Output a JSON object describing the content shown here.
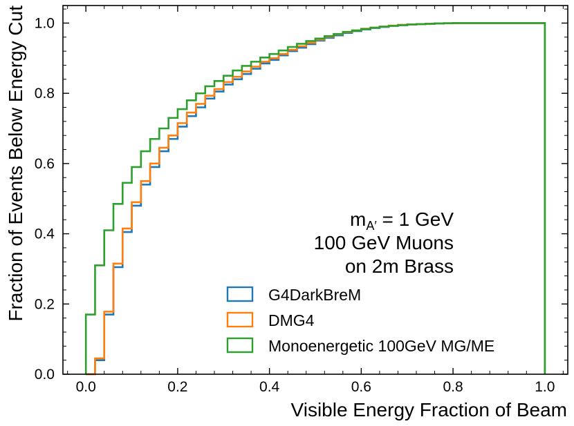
{
  "chart_data": {
    "type": "line",
    "style": "step-histogram",
    "xlabel": "Visible Energy Fraction of Beam",
    "ylabel": "Fraction of Events Below Energy Cut",
    "xlim": [
      -0.05,
      1.05
    ],
    "ylim": [
      0.0,
      1.05
    ],
    "xticks": [
      0.0,
      0.2,
      0.4,
      0.6,
      0.8,
      1.0
    ],
    "xtick_labels": [
      "0.0",
      "0.2",
      "0.4",
      "0.6",
      "0.8",
      "1.0"
    ],
    "yticks": [
      0.0,
      0.2,
      0.4,
      0.6,
      0.8,
      1.0
    ],
    "ytick_labels": [
      "0.0",
      "0.2",
      "0.4",
      "0.6",
      "0.8",
      "1.0"
    ],
    "annotations": {
      "mass_prefix": "m",
      "mass_subscript": "A′",
      "mass_suffix": " = 1 GeV",
      "line2": "100 GeV Muons",
      "line3": "on 2m Brass"
    },
    "legend_location": "lower-right",
    "bin_width": 0.02,
    "x": [
      0.0,
      0.02,
      0.04,
      0.06,
      0.08,
      0.1,
      0.12,
      0.14,
      0.16,
      0.18,
      0.2,
      0.22,
      0.24,
      0.26,
      0.28,
      0.3,
      0.32,
      0.34,
      0.36,
      0.38,
      0.4,
      0.42,
      0.44,
      0.46,
      0.48,
      0.5,
      0.52,
      0.54,
      0.56,
      0.58,
      0.6,
      0.62,
      0.64,
      0.66,
      0.68,
      0.7,
      0.72,
      0.74,
      0.76,
      0.78,
      0.8,
      0.82,
      0.84,
      0.86,
      0.88,
      0.9,
      0.92,
      0.94,
      0.96,
      0.98,
      1.0
    ],
    "series": [
      {
        "name": "G4DarkBreM",
        "color": "#1f77b4",
        "values": [
          0.0,
          0.04,
          0.17,
          0.305,
          0.405,
          0.48,
          0.54,
          0.59,
          0.635,
          0.67,
          0.705,
          0.735,
          0.76,
          0.785,
          0.805,
          0.825,
          0.84,
          0.855,
          0.87,
          0.885,
          0.895,
          0.908,
          0.92,
          0.93,
          0.94,
          0.95,
          0.958,
          0.965,
          0.972,
          0.977,
          0.982,
          0.986,
          0.989,
          0.992,
          0.994,
          0.996,
          0.997,
          0.998,
          0.999,
          0.9995,
          1.0,
          1.0,
          1.0,
          1.0,
          1.0,
          1.0,
          1.0,
          1.0,
          1.0,
          1.0,
          0.0
        ]
      },
      {
        "name": "DMG4",
        "color": "#ff7f0e",
        "values": [
          0.0,
          0.045,
          0.178,
          0.315,
          0.415,
          0.49,
          0.55,
          0.6,
          0.645,
          0.68,
          0.715,
          0.745,
          0.77,
          0.793,
          0.812,
          0.832,
          0.847,
          0.862,
          0.876,
          0.89,
          0.9,
          0.912,
          0.924,
          0.934,
          0.944,
          0.953,
          0.961,
          0.968,
          0.974,
          0.979,
          0.984,
          0.987,
          0.99,
          0.993,
          0.995,
          0.996,
          0.997,
          0.998,
          0.999,
          0.9995,
          1.0,
          1.0,
          1.0,
          1.0,
          1.0,
          1.0,
          1.0,
          1.0,
          1.0,
          1.0,
          0.0
        ]
      },
      {
        "name": "Monoenergetic 100GeV MG/ME",
        "color": "#2ca02c",
        "values": [
          0.17,
          0.31,
          0.41,
          0.485,
          0.545,
          0.59,
          0.635,
          0.67,
          0.7,
          0.73,
          0.755,
          0.78,
          0.8,
          0.82,
          0.835,
          0.85,
          0.865,
          0.878,
          0.89,
          0.902,
          0.912,
          0.922,
          0.932,
          0.941,
          0.949,
          0.956,
          0.963,
          0.969,
          0.975,
          0.979,
          0.983,
          0.987,
          0.99,
          0.992,
          0.994,
          0.996,
          0.997,
          0.998,
          0.999,
          0.9995,
          1.0,
          1.0,
          1.0,
          1.0,
          1.0,
          1.0,
          1.0,
          1.0,
          1.0,
          1.0,
          0.0
        ]
      }
    ]
  }
}
